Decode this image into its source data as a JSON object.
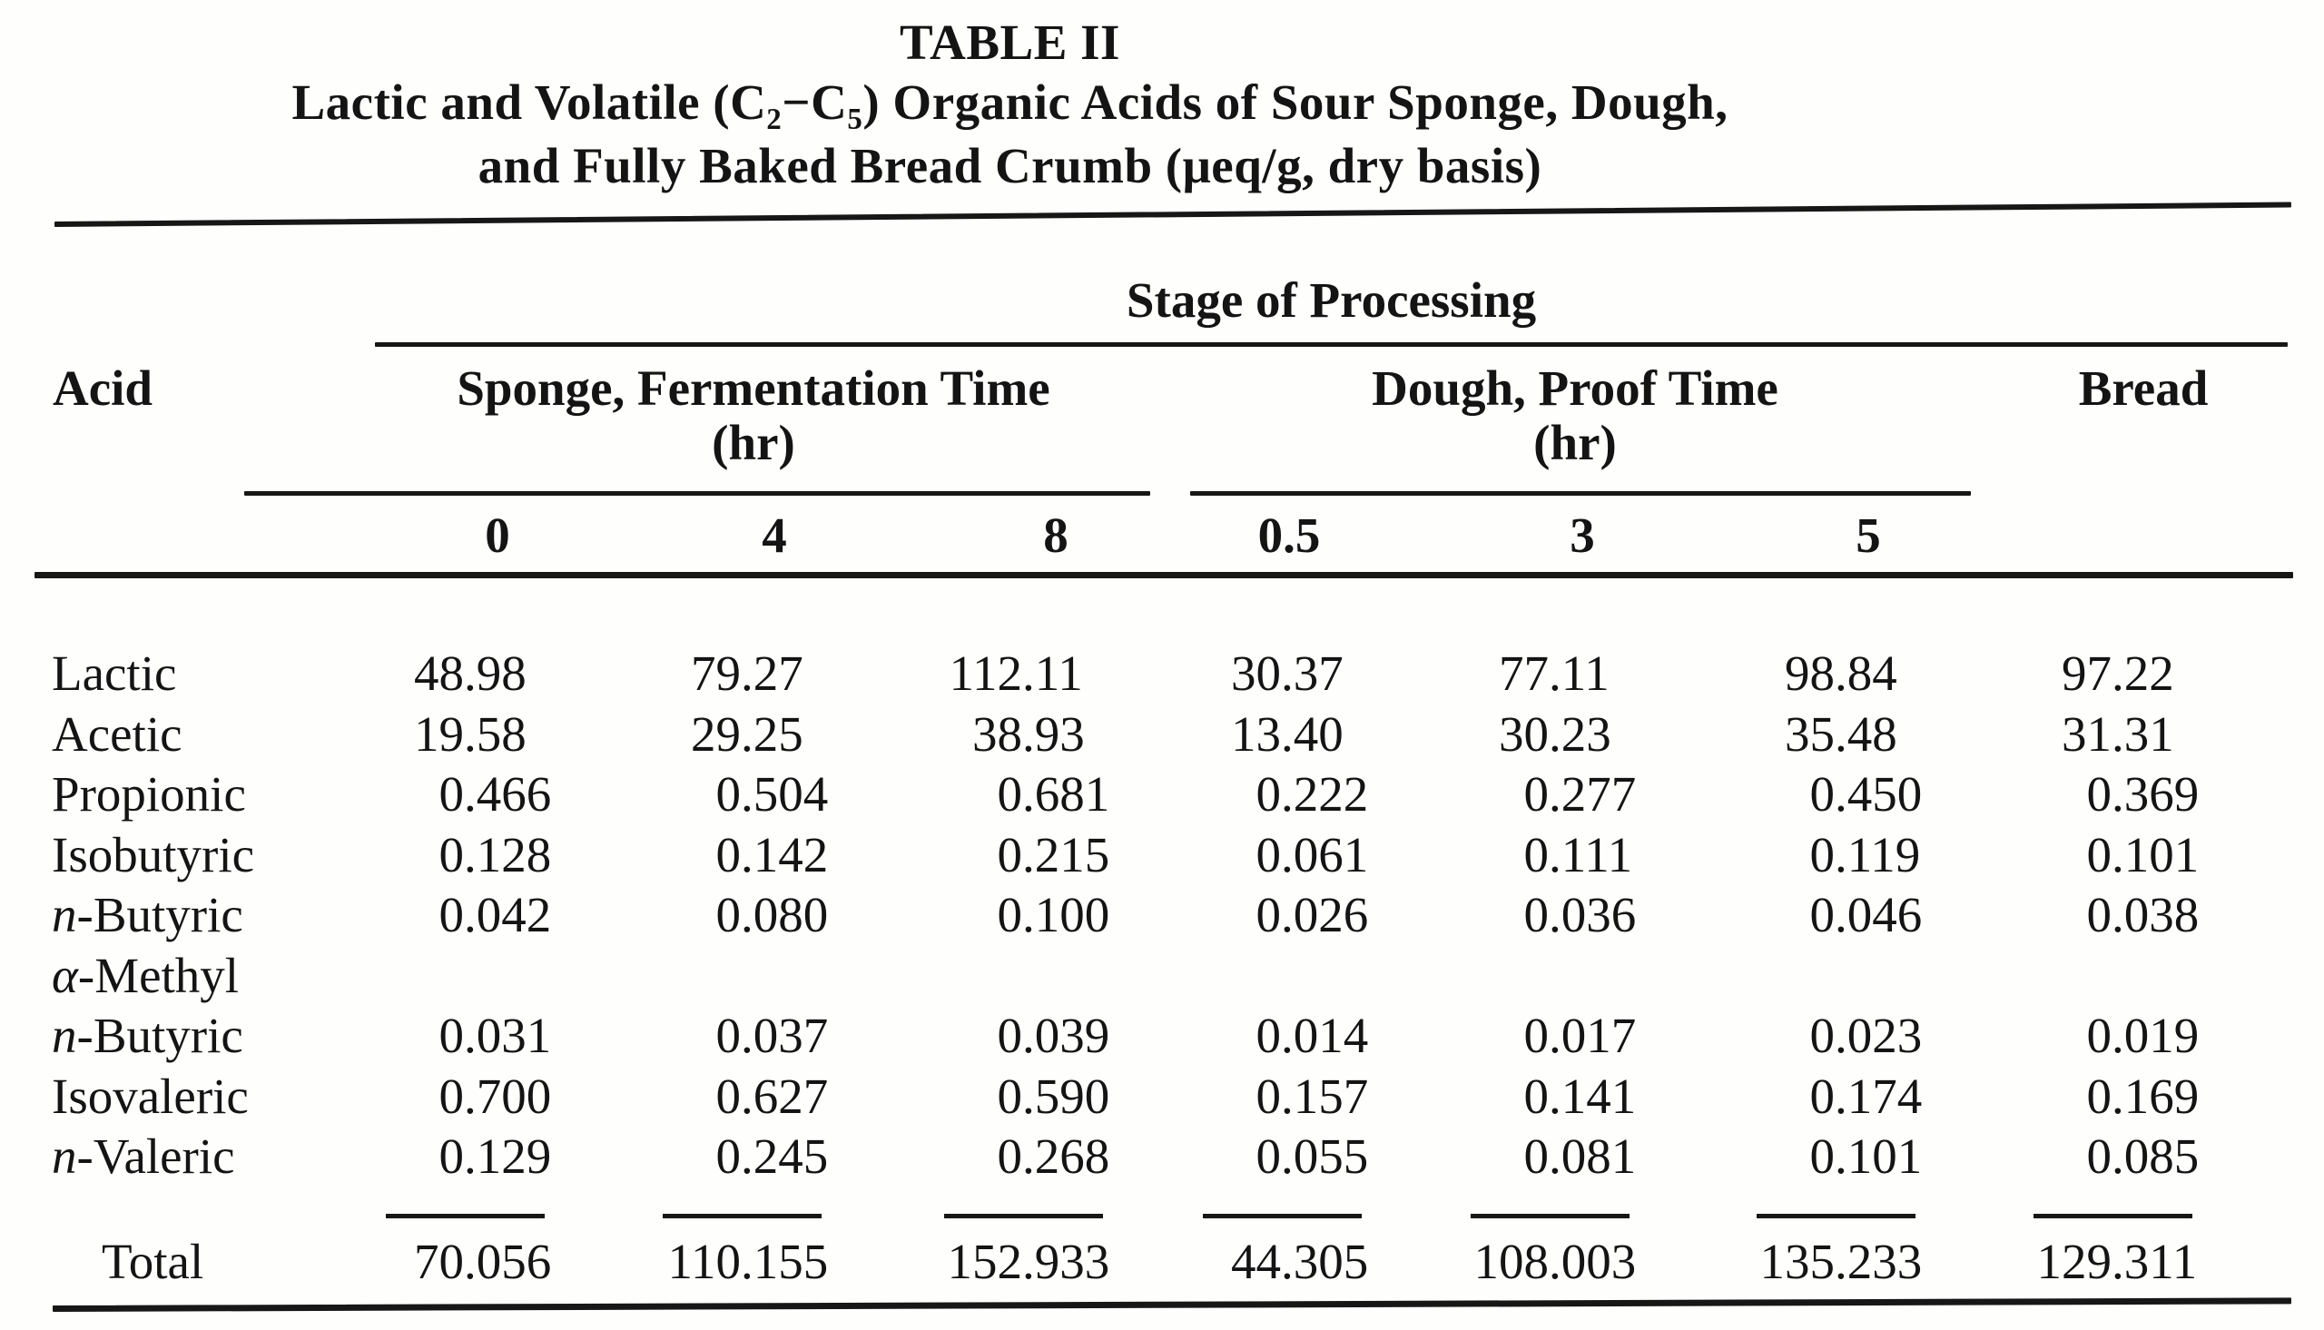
{
  "title": {
    "line1": "TABLE II",
    "line2": "Lactic and Volatile (C₂−C₅) Organic Acids of Sour Sponge, Dough,",
    "line3": "and Fully Baked Bread Crumb (μeq/g, dry basis)"
  },
  "header": {
    "spanner": "Stage of Processing",
    "acid_col": "Acid",
    "group1_line1": "Sponge, Fermentation Time",
    "group1_line2": "(hr)",
    "group2_line1": "Dough, Proof Time",
    "group2_line2": "(hr)",
    "bread_col": "Bread",
    "sub_headers": [
      "0",
      "4",
      "8",
      "0.5",
      "3",
      "5"
    ]
  },
  "table": {
    "rows": [
      {
        "label_it": "",
        "label": "Lactic",
        "values": [
          "48.98",
          "79.27",
          "112.11",
          "30.37",
          "77.11",
          "98.84",
          "97.22"
        ]
      },
      {
        "label_it": "",
        "label": "Acetic",
        "values": [
          "19.58",
          "29.25",
          "38.93",
          "13.40",
          "30.23",
          "35.48",
          "31.31"
        ]
      },
      {
        "label_it": "",
        "label": "Propionic",
        "values": [
          "0.466",
          "0.504",
          "0.681",
          "0.222",
          "0.277",
          "0.450",
          "0.369"
        ]
      },
      {
        "label_it": "",
        "label": "Isobutyric",
        "values": [
          "0.128",
          "0.142",
          "0.215",
          "0.061",
          "0.111",
          "0.119",
          "0.101"
        ]
      },
      {
        "label_it": "n",
        "label": "-Butyric",
        "values": [
          "0.042",
          "0.080",
          "0.100",
          "0.026",
          "0.036",
          "0.046",
          "0.038"
        ]
      },
      {
        "label_it": "α",
        "label": "-Methyl",
        "values": [
          "",
          "",
          "",
          "",
          "",
          "",
          ""
        ]
      },
      {
        "label_it": "n",
        "label": "-Butyric",
        "values": [
          "0.031",
          "0.037",
          "0.039",
          "0.014",
          "0.017",
          "0.023",
          "0.019"
        ]
      },
      {
        "label_it": "",
        "label": "Isovaleric",
        "values": [
          "0.700",
          "0.627",
          "0.590",
          "0.157",
          "0.141",
          "0.174",
          "0.169"
        ]
      },
      {
        "label_it": "n",
        "label": "-Valeric",
        "values": [
          "0.129",
          "0.245",
          "0.268",
          "0.055",
          "0.081",
          "0.101",
          "0.085"
        ]
      }
    ],
    "total": {
      "label": "Total",
      "values": [
        "70.056",
        "110.155",
        "152.933",
        "44.305",
        "108.003",
        "135.233",
        "129.311"
      ]
    }
  }
}
